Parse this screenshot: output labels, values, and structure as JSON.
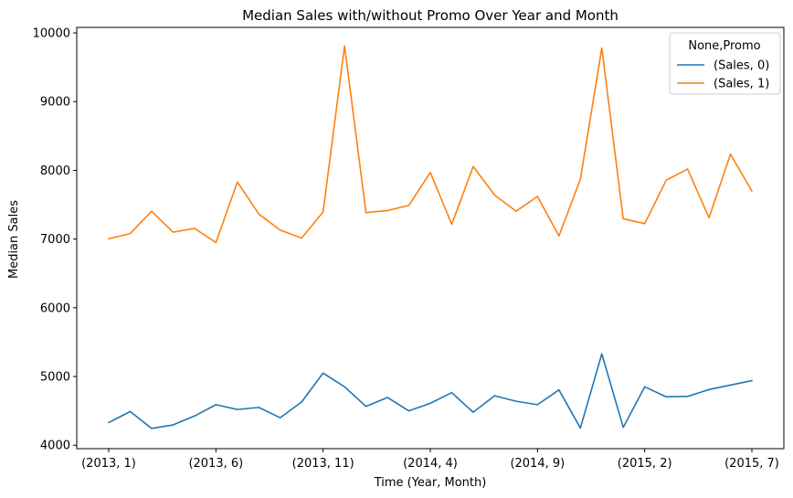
{
  "chart_data": {
    "type": "line",
    "title": "Median Sales with/without Promo Over Year and Month",
    "xlabel": "Time (Year, Month)",
    "ylabel": "Median Sales",
    "ylim": [
      3950,
      10080
    ],
    "yticks": [
      4000,
      5000,
      6000,
      7000,
      8000,
      9000,
      10000
    ],
    "x_tick_indices": [
      0,
      5,
      10,
      15,
      20,
      25,
      30
    ],
    "x_tick_labels": [
      "(2013, 1)",
      "(2013, 6)",
      "(2013, 11)",
      "(2014, 4)",
      "(2014, 9)",
      "(2015, 2)",
      "(2015, 7)"
    ],
    "grid": false,
    "legend": {
      "title": "None,Promo",
      "position": "top-right"
    },
    "x": [
      "(2013, 1)",
      "(2013, 2)",
      "(2013, 3)",
      "(2013, 4)",
      "(2013, 5)",
      "(2013, 6)",
      "(2013, 7)",
      "(2013, 8)",
      "(2013, 9)",
      "(2013, 10)",
      "(2013, 11)",
      "(2013, 12)",
      "(2014, 1)",
      "(2014, 2)",
      "(2014, 3)",
      "(2014, 4)",
      "(2014, 5)",
      "(2014, 6)",
      "(2014, 7)",
      "(2014, 8)",
      "(2014, 9)",
      "(2014, 10)",
      "(2014, 11)",
      "(2014, 12)",
      "(2015, 1)",
      "(2015, 2)",
      "(2015, 3)",
      "(2015, 4)",
      "(2015, 5)",
      "(2015, 6)",
      "(2015, 7)"
    ],
    "series": [
      {
        "name": "(Sales, 0)",
        "color": "#1f77b4",
        "values": [
          4330,
          4490,
          4245,
          4295,
          4425,
          4590,
          4520,
          4550,
          4400,
          4630,
          5050,
          4850,
          4565,
          4695,
          4500,
          4610,
          4765,
          4480,
          4720,
          4640,
          4590,
          4805,
          4250,
          5330,
          4260,
          4850,
          4705,
          4710,
          4810,
          4875,
          4940
        ]
      },
      {
        "name": "(Sales, 1)",
        "color": "#ff7f0e",
        "values": [
          7005,
          7080,
          7405,
          7100,
          7155,
          6950,
          7830,
          7365,
          7130,
          7015,
          7395,
          9810,
          7385,
          7415,
          7490,
          7970,
          7215,
          8055,
          7640,
          7405,
          7620,
          7045,
          7870,
          9780,
          7295,
          7225,
          7855,
          8020,
          7310,
          8235,
          7700
        ]
      }
    ]
  }
}
